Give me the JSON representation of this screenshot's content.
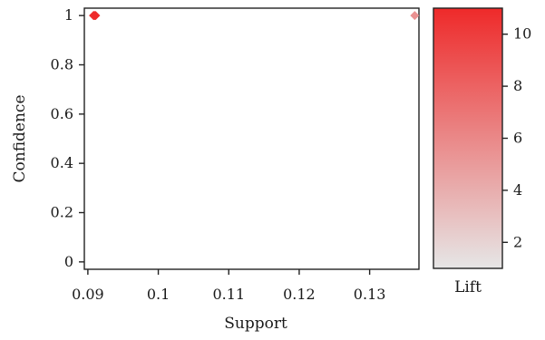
{
  "chart_data": {
    "type": "scatter",
    "xlabel": "Support",
    "ylabel": "Confidence",
    "xlim": [
      0.0895,
      0.137
    ],
    "ylim": [
      -0.03,
      1.03
    ],
    "x_ticks": [
      0.09,
      0.1,
      0.11,
      0.12,
      0.13
    ],
    "x_tick_labels": [
      "0.09",
      "0.1",
      "0.11",
      "0.12",
      "0.13"
    ],
    "y_ticks": [
      0,
      0.2,
      0.4,
      0.6,
      0.8,
      1
    ],
    "y_tick_labels": [
      "0",
      "0.2",
      "0.4",
      "0.6",
      "0.8",
      "1"
    ],
    "points": [
      {
        "x": 0.0908,
        "y": 1.0,
        "lift": 11
      },
      {
        "x": 0.0909,
        "y": 1.0,
        "lift": 11
      },
      {
        "x": 0.091,
        "y": 1.0,
        "lift": 10.5
      },
      {
        "x": 0.0911,
        "y": 1.0,
        "lift": 11
      },
      {
        "x": 0.1364,
        "y": 1.0,
        "lift": 5.5
      }
    ],
    "colorbar": {
      "title": "Lift",
      "range": [
        1,
        11
      ],
      "ticks": [
        2,
        4,
        6,
        8,
        10
      ],
      "tick_labels": [
        "2",
        "4",
        "6",
        "8",
        "10"
      ],
      "color_low": "#e6e6e6",
      "color_high": "#ee2a2a"
    },
    "grid": false,
    "legend": "none"
  }
}
